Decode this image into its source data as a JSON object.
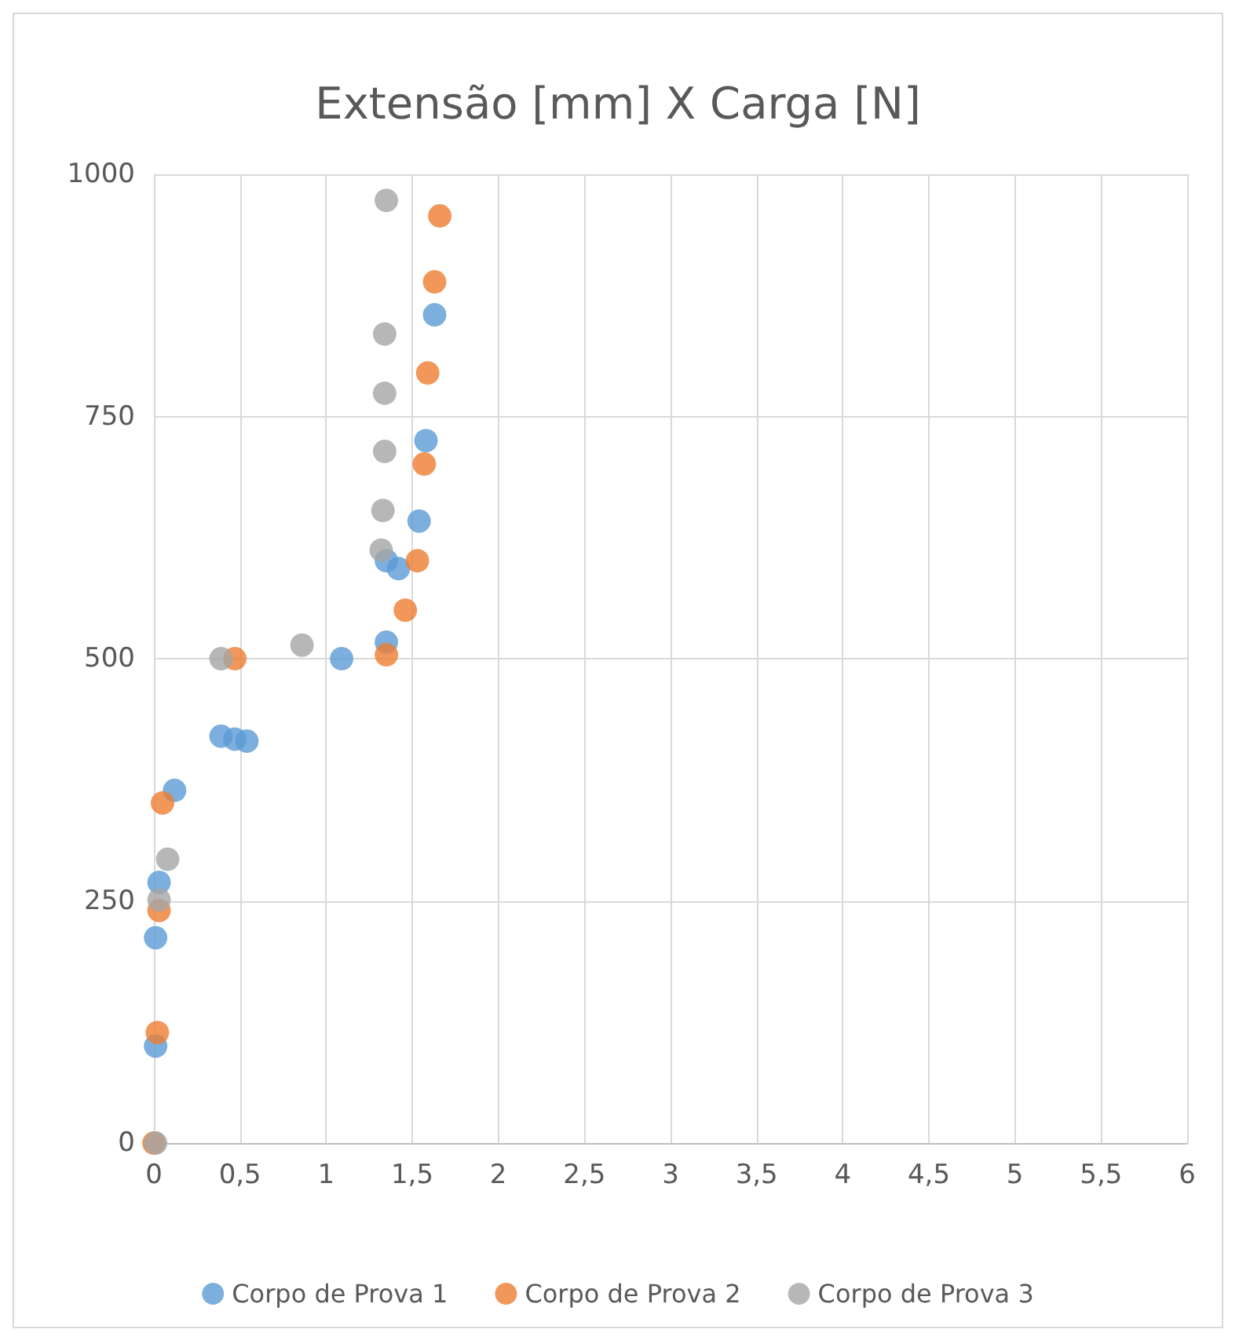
{
  "chart_data": {
    "type": "scatter",
    "title": "Extensão [mm] X Carga [N]",
    "series": [
      {
        "name": "Corpo de Prova 1",
        "color": "#5b9bd5",
        "x": [
          0.01,
          0.01,
          0.03,
          0.12,
          0.39,
          0.47,
          0.54,
          1.09,
          1.35,
          1.35,
          1.42,
          1.54,
          1.58,
          1.63
        ],
        "values": [
          100,
          212,
          269,
          364,
          420,
          417,
          415,
          500,
          517,
          601,
          593,
          642,
          725,
          855
        ]
      },
      {
        "name": "Corpo de Prova 2",
        "color": "#ed7d31",
        "x": [
          0,
          0.02,
          0.03,
          0.05,
          0.47,
          1.35,
          1.46,
          1.53,
          1.57,
          1.59,
          1.63,
          1.66
        ],
        "values": [
          0,
          114,
          240,
          351,
          500,
          504,
          550,
          601,
          701,
          795,
          889,
          957
        ]
      },
      {
        "name": "Corpo de Prova 3",
        "color": "#a5a5a5",
        "x": [
          0.01,
          0.03,
          0.08,
          0.39,
          0.86,
          1.32,
          1.33,
          1.34,
          1.34,
          1.34,
          1.35
        ],
        "values": [
          0,
          251,
          293,
          500,
          514,
          612,
          653,
          714,
          774,
          835,
          973
        ]
      }
    ],
    "xlim": [
      0,
      6
    ],
    "xticks": [
      0,
      {
        "value": 0.5,
        "label": "0,5"
      },
      1,
      {
        "value": 1.5,
        "label": "1,5"
      },
      2,
      {
        "value": 2.5,
        "label": "2,5"
      },
      3,
      {
        "value": 3.5,
        "label": "3,5"
      },
      4,
      {
        "value": 4.5,
        "label": "4,5"
      },
      5,
      {
        "value": 5.5,
        "label": "5,5"
      },
      6
    ],
    "ylim": [
      0,
      1000
    ],
    "yticks": [
      0,
      250,
      500,
      750,
      1000
    ],
    "grid": true,
    "legend": "bottom",
    "marker": "circle"
  }
}
